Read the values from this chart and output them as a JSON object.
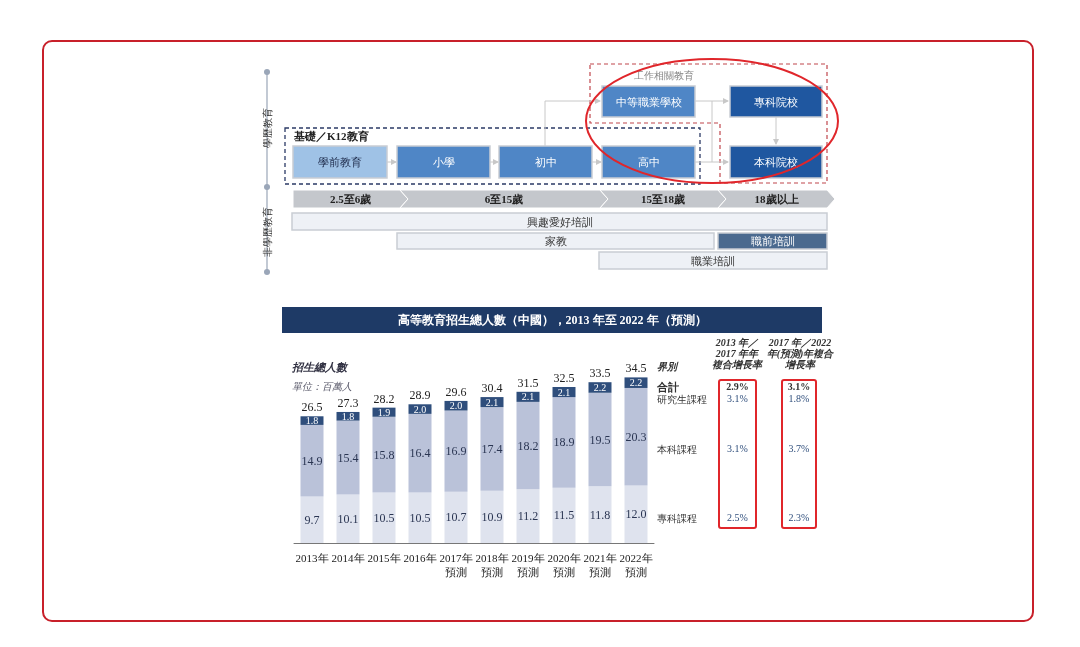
{
  "chart_data": [
    {
      "type": "other",
      "annotations": [
        "學歷教育",
        "非學歷教育",
        "基礎／K12教育",
        "工作相關教育",
        "學前教育",
        "小學",
        "初中",
        "高中",
        "中等職業學校",
        "專科院校",
        "本科院校",
        "2.5至6歲",
        "6至15歲",
        "15至18歲",
        "18歲以上",
        "興趣愛好培訓",
        "家教",
        "職前培訓",
        "職業培訓"
      ]
    },
    {
      "type": "bar",
      "title": "高等教育招生總人數（中國），2013 年至 2022 年（預測）",
      "ylabel": "招生總人數",
      "subtitle": "單位：百萬人",
      "stacked": true,
      "legend": "right",
      "categories": [
        "2013年",
        "2014年",
        "2015年",
        "2016年",
        "2017年預測",
        "2018年預測",
        "2019年預測",
        "2020年預測",
        "2021年預測",
        "2022年預測"
      ],
      "series": [
        {
          "name": "專科課程",
          "color": "#dfe3ee",
          "values": [
            9.7,
            10.1,
            10.5,
            10.5,
            10.7,
            10.9,
            11.2,
            11.5,
            11.8,
            12.0
          ],
          "value_labels": [
            "9.7",
            "10.1",
            "10.5",
            "10.5",
            "10.7",
            "10.9",
            "11.2",
            "11.5",
            "11.8",
            "12.0"
          ]
        },
        {
          "name": "本科課程",
          "color": "#bac2d9",
          "values": [
            14.9,
            15.4,
            15.8,
            16.4,
            16.9,
            17.4,
            18.2,
            18.9,
            19.5,
            20.3
          ],
          "value_labels": [
            "14.9",
            "15.4",
            "15.8",
            "16.4",
            "16.9",
            "17.4",
            "18.2",
            "18.9",
            "19.5",
            "20.3"
          ]
        },
        {
          "name": "研究生課程",
          "color": "#2f4e7c",
          "values": [
            1.8,
            1.8,
            1.9,
            2.0,
            2.0,
            2.1,
            2.1,
            2.1,
            2.2,
            2.2
          ],
          "value_labels": [
            "1.8",
            "1.8",
            "1.9",
            "2.0",
            "2.0",
            "2.1",
            "2.1",
            "2.1",
            "2.2",
            "2.2"
          ]
        }
      ],
      "totals": [
        "26.5",
        "27.3",
        "28.2",
        "28.9",
        "29.6",
        "30.4",
        "31.5",
        "32.5",
        "33.5",
        "34.5"
      ],
      "annotations": [
        "界別",
        "2013 年／2017 年年複合增長率",
        "2017 年／2022 年(預測)年複合增長率",
        "合計",
        "2.9%",
        "3.1%",
        "3.1%",
        "1.8%",
        "3.1%",
        "3.7%",
        "2.5%",
        "2.3%"
      ]
    }
  ]
}
